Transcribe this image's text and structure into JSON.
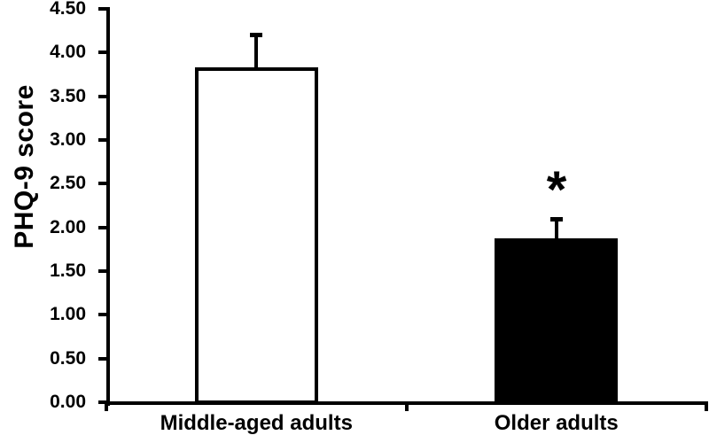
{
  "figure": {
    "background_color": "#ffffff",
    "ink_color": "#000000"
  },
  "chart_data": {
    "type": "bar",
    "title": "",
    "xlabel": "",
    "ylabel": "PHQ-9 score",
    "categories": [
      "Middle-aged adults",
      "Older adults"
    ],
    "values": [
      3.83,
      1.88
    ],
    "error_upper": [
      0.39,
      0.23
    ],
    "bar_fills": [
      "#ffffff",
      "#000000"
    ],
    "bar_border_color": "#000000",
    "ylim": [
      0,
      4.5
    ],
    "ytick_step": 0.5,
    "yticks": [
      "4.50",
      "4.00",
      "3.50",
      "3.00",
      "2.50",
      "2.00",
      "1.50",
      "1.00",
      "0.50",
      "0.00"
    ],
    "grid": false,
    "legend": null,
    "annotations": [
      {
        "text": "*",
        "category_index": 1,
        "meaning": "statistical-significance-marker"
      }
    ]
  }
}
